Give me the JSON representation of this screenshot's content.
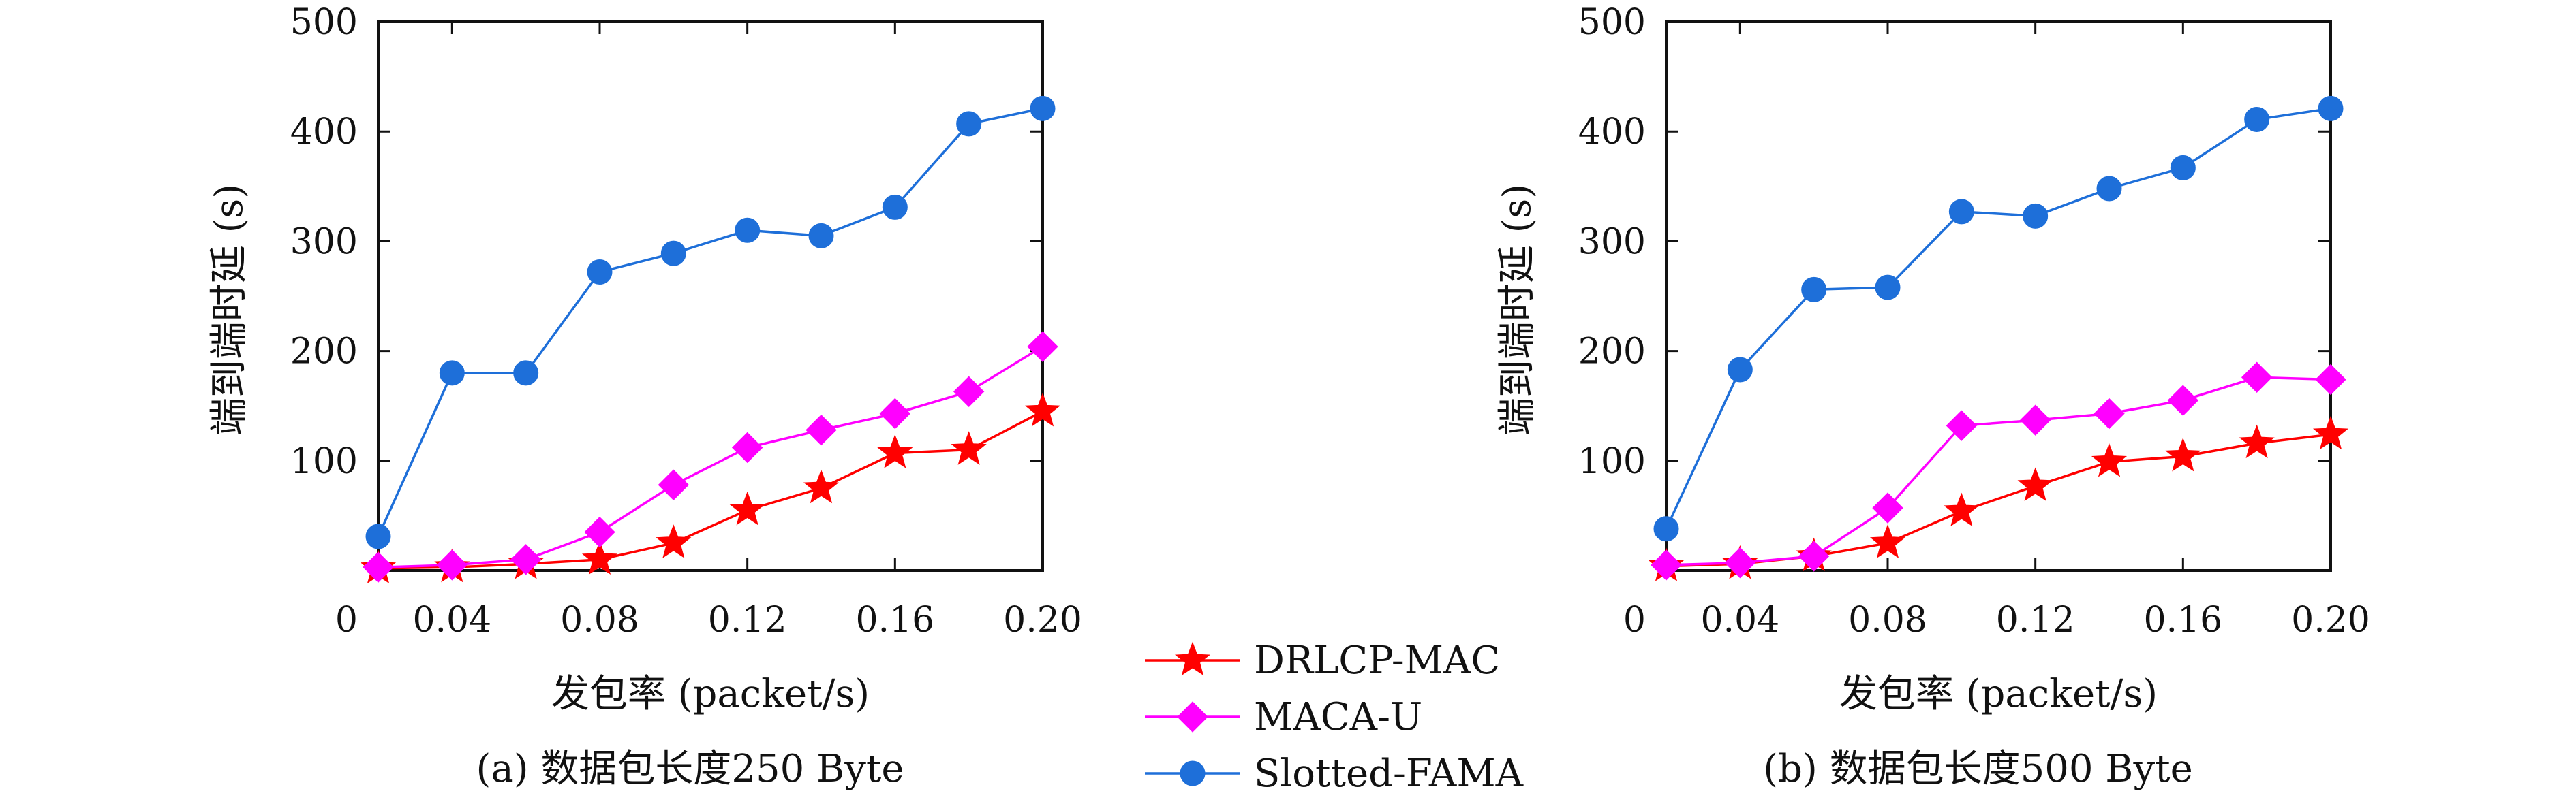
{
  "figure": {
    "legend": {
      "placement": "bottom-center",
      "entries": [
        {
          "label": "DRLCP-MAC",
          "color": "#ff0000",
          "marker": "star"
        },
        {
          "label": "MACA-U",
          "color": "#ff00ff",
          "marker": "diamond"
        },
        {
          "label": "Slotted-FAMA",
          "color": "#1e6fd9",
          "marker": "circle"
        }
      ]
    }
  },
  "chart_data": [
    {
      "type": "line",
      "caption": "(a) 数据包长度250 Byte",
      "xlabel": "发包率 (packet/s)",
      "ylabel": "端到端时延 (s)",
      "xlim": [
        0.02,
        0.2
      ],
      "ylim": [
        0,
        500
      ],
      "xticks": [
        0.04,
        0.08,
        0.12,
        0.16,
        0.2
      ],
      "xtick_labels": [
        "0.04",
        "0.08",
        "0.12",
        "0.16",
        "0.20"
      ],
      "yticks": [
        0,
        100,
        200,
        300,
        400,
        500
      ],
      "ytick_labels": [
        "0",
        "100",
        "200",
        "300",
        "400",
        "500"
      ],
      "grid": false,
      "x": [
        0.02,
        0.04,
        0.06,
        0.08,
        0.1,
        0.12,
        0.14,
        0.16,
        0.18,
        0.2
      ],
      "series": [
        {
          "name": "DRLCP-MAC",
          "color": "#ff0000",
          "marker": "star",
          "values": [
            2,
            3,
            6,
            10,
            25,
            55,
            75,
            107,
            110,
            145
          ]
        },
        {
          "name": "MACA-U",
          "color": "#ff00ff",
          "marker": "diamond",
          "values": [
            3,
            5,
            10,
            35,
            78,
            112,
            128,
            143,
            163,
            204
          ]
        },
        {
          "name": "Slotted-FAMA",
          "color": "#1e6fd9",
          "marker": "circle",
          "values": [
            31,
            180,
            180,
            272,
            289,
            310,
            305,
            331,
            407,
            421
          ]
        }
      ]
    },
    {
      "type": "line",
      "caption": "(b) 数据包长度500 Byte",
      "xlabel": "发包率 (packet/s)",
      "ylabel": "端到端时延 (s)",
      "xlim": [
        0.02,
        0.2
      ],
      "ylim": [
        0,
        500
      ],
      "xticks": [
        0.04,
        0.08,
        0.12,
        0.16,
        0.2
      ],
      "xtick_labels": [
        "0.04",
        "0.08",
        "0.12",
        "0.16",
        "0.20"
      ],
      "yticks": [
        0,
        100,
        200,
        300,
        400,
        500
      ],
      "ytick_labels": [
        "0",
        "100",
        "200",
        "300",
        "400",
        "500"
      ],
      "grid": false,
      "x": [
        0.02,
        0.04,
        0.06,
        0.08,
        0.1,
        0.12,
        0.14,
        0.16,
        0.18,
        0.2
      ],
      "series": [
        {
          "name": "DRLCP-MAC",
          "color": "#ff0000",
          "marker": "star",
          "values": [
            4,
            6,
            13,
            25,
            54,
            77,
            99,
            104,
            116,
            124
          ]
        },
        {
          "name": "MACA-U",
          "color": "#ff00ff",
          "marker": "diamond",
          "values": [
            5,
            7,
            13,
            57,
            132,
            137,
            143,
            155,
            176,
            174
          ]
        },
        {
          "name": "Slotted-FAMA",
          "color": "#1e6fd9",
          "marker": "circle",
          "values": [
            38,
            183,
            256,
            258,
            327,
            323,
            348,
            367,
            411,
            421
          ]
        }
      ]
    }
  ]
}
